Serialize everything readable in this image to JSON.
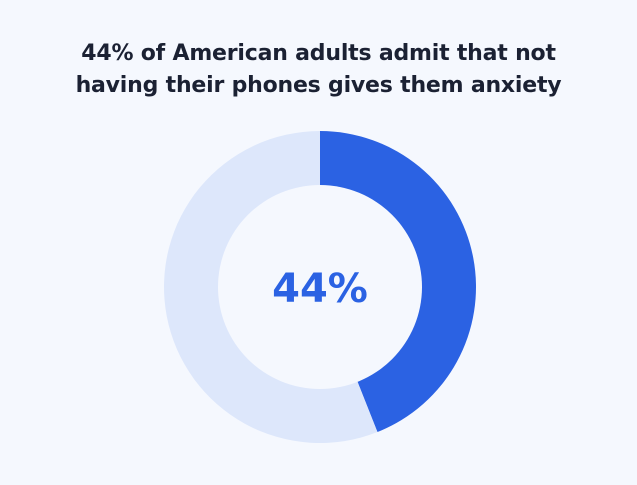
{
  "title": {
    "line1": "44% of American adults admit that not",
    "line2": "having their phones gives them anxiety"
  },
  "chart_data": {
    "type": "pie",
    "variant": "donut",
    "title": "44% of American adults admit that not having their phones gives them anxiety",
    "slices": [
      {
        "value": 44,
        "color": "#2b62e3"
      },
      {
        "value": 56,
        "color": "#dde7fb"
      }
    ],
    "center_label": "44%",
    "center_label_color": "#2b62e3"
  },
  "colors": {
    "background": "#f5f8fe",
    "title": "#1b2133",
    "hole": "#f5f8fe"
  }
}
